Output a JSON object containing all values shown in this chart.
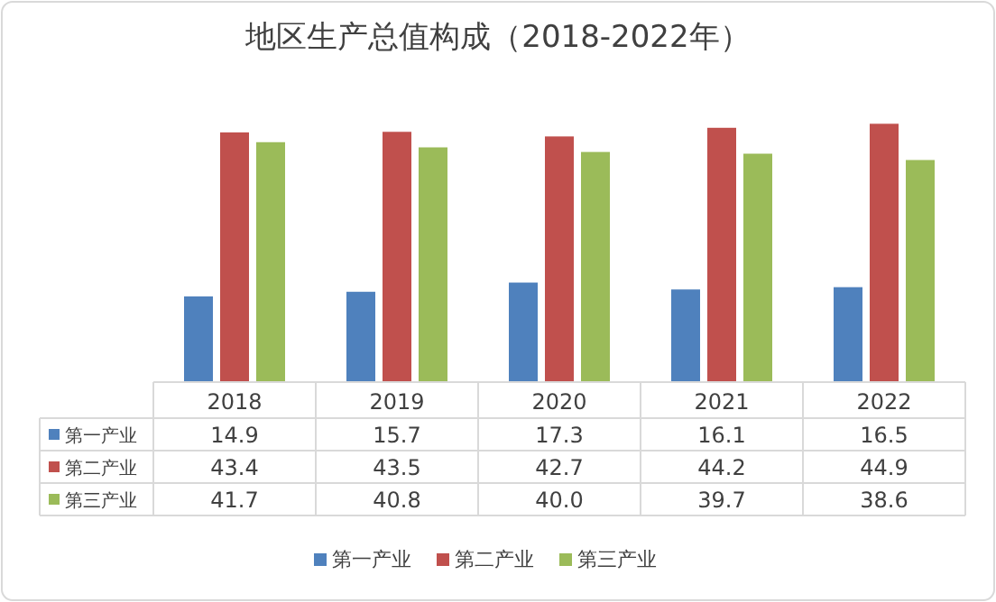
{
  "chart_data": {
    "type": "bar",
    "title": "地区生产总值构成（2018-2022年）",
    "categories": [
      "2018",
      "2019",
      "2020",
      "2021",
      "2022"
    ],
    "series": [
      {
        "name": "第一产业",
        "color": "#4f81bd",
        "values": [
          14.9,
          15.7,
          17.3,
          16.1,
          16.5
        ],
        "value_labels": [
          "14.9",
          "15.7",
          "17.3",
          "16.1",
          "16.5"
        ]
      },
      {
        "name": "第二产业",
        "color": "#c0504d",
        "values": [
          43.4,
          43.5,
          42.7,
          44.2,
          44.9
        ],
        "value_labels": [
          "43.4",
          "43.5",
          "42.7",
          "44.2",
          "44.9"
        ]
      },
      {
        "name": "第三产业",
        "color": "#9bbb59",
        "values": [
          41.7,
          40.8,
          40.0,
          39.7,
          38.6
        ],
        "value_labels": [
          "41.7",
          "40.8",
          "40.0",
          "39.7",
          "38.6"
        ]
      }
    ],
    "legend": "bottom"
  }
}
